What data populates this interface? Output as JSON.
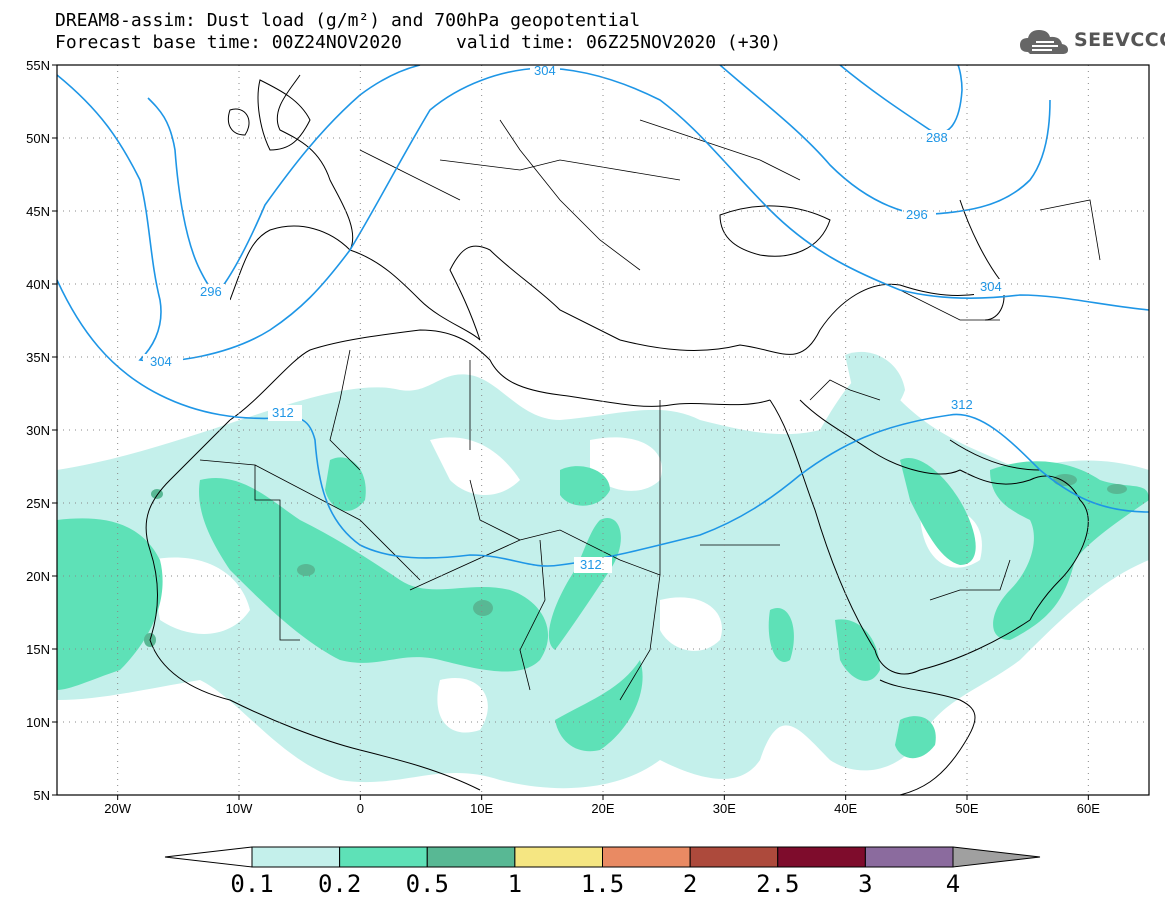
{
  "header": {
    "line1": "DREAM8-assim: Dust load (g/m²) and 700hPa geopotential",
    "line2": "Forecast base time: 00Z24NOV2020     valid time: 06Z25NOV2020 (+30)"
  },
  "logo": {
    "text": "SEEVCCC",
    "icon": "cloud-icon"
  },
  "axes": {
    "lat_labels": [
      "55N",
      "50N",
      "45N",
      "40N",
      "35N",
      "30N",
      "25N",
      "20N",
      "15N",
      "10N",
      "5N"
    ],
    "lon_labels": [
      "20W",
      "10W",
      "0",
      "10E",
      "20E",
      "30E",
      "40E",
      "50E",
      "60E"
    ],
    "lat_range": [
      5,
      55
    ],
    "lon_range": [
      -25,
      65
    ],
    "grid": "dotted"
  },
  "contours": {
    "variable": "700hPa geopotential",
    "labels": [
      "304",
      "304",
      "296",
      "296",
      "288",
      "304",
      "312",
      "312",
      "312"
    ],
    "color": "#1e96e6"
  },
  "colorbar": {
    "labels": [
      "0.1",
      "0.2",
      "0.5",
      "1",
      "1.5",
      "2",
      "2.5",
      "3",
      "4"
    ],
    "colors": [
      "#c4f0eb",
      "#5ee1b7",
      "#58b894",
      "#f5e682",
      "#e98a63",
      "#ad4a3c",
      "#7e0c2c",
      "#8b6b9e",
      "#a0a0a0"
    ],
    "under_color": "#ffffff"
  },
  "palette": {
    "land_border": "#000000",
    "contour": "#1e96e6"
  }
}
